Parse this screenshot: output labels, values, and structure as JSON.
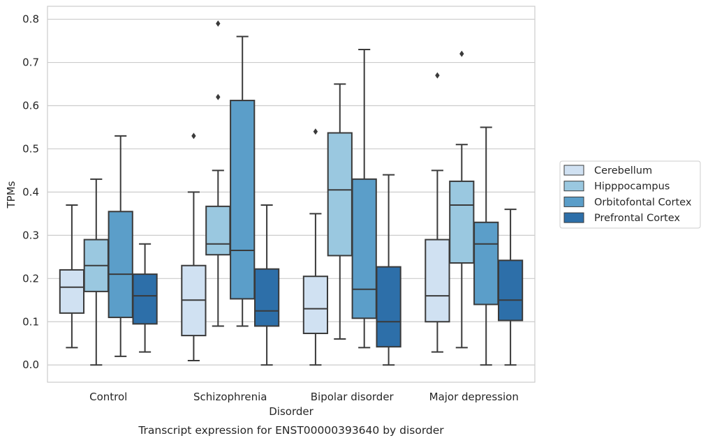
{
  "chart_data": {
    "type": "boxplot",
    "title": "Transcript expression for ENST00000393640 by disorder",
    "xlabel": "Disorder",
    "ylabel": "TPMs",
    "ylim": [
      -0.04,
      0.83
    ],
    "yticks": [
      "0.0",
      "0.1",
      "0.2",
      "0.3",
      "0.4",
      "0.5",
      "0.6",
      "0.7",
      "0.8"
    ],
    "grid": true,
    "legend_position": "right",
    "categories": [
      "Control",
      "Schizophrenia",
      "Bipolar disorder",
      "Major depression"
    ],
    "series": [
      {
        "name": "Cerebellum",
        "color": "#d0e1f2",
        "boxes": [
          {
            "whislo": 0.04,
            "q1": 0.12,
            "med": 0.18,
            "q3": 0.22,
            "whishi": 0.37,
            "fliers": []
          },
          {
            "whislo": 0.01,
            "q1": 0.068,
            "med": 0.15,
            "q3": 0.23,
            "whishi": 0.4,
            "fliers": [
              0.53
            ]
          },
          {
            "whislo": 0.0,
            "q1": 0.073,
            "med": 0.13,
            "q3": 0.205,
            "whishi": 0.35,
            "fliers": [
              0.54
            ]
          },
          {
            "whislo": 0.03,
            "q1": 0.1,
            "med": 0.16,
            "q3": 0.29,
            "whishi": 0.45,
            "fliers": [
              0.67
            ]
          }
        ]
      },
      {
        "name": "Hipppocampus",
        "color": "#9ac8e0",
        "boxes": [
          {
            "whislo": 0.0,
            "q1": 0.17,
            "med": 0.23,
            "q3": 0.29,
            "whishi": 0.43,
            "fliers": []
          },
          {
            "whislo": 0.09,
            "q1": 0.255,
            "med": 0.28,
            "q3": 0.367,
            "whishi": 0.45,
            "fliers": [
              0.62,
              0.79
            ]
          },
          {
            "whislo": 0.06,
            "q1": 0.253,
            "med": 0.405,
            "q3": 0.537,
            "whishi": 0.65,
            "fliers": []
          },
          {
            "whislo": 0.04,
            "q1": 0.236,
            "med": 0.37,
            "q3": 0.425,
            "whishi": 0.51,
            "fliers": [
              0.72
            ]
          }
        ]
      },
      {
        "name": "Orbitofontal Cortex",
        "color": "#5b9ec9",
        "boxes": [
          {
            "whislo": 0.02,
            "q1": 0.11,
            "med": 0.21,
            "q3": 0.355,
            "whishi": 0.53,
            "fliers": []
          },
          {
            "whislo": 0.09,
            "q1": 0.153,
            "med": 0.265,
            "q3": 0.612,
            "whishi": 0.76,
            "fliers": []
          },
          {
            "whislo": 0.04,
            "q1": 0.108,
            "med": 0.175,
            "q3": 0.43,
            "whishi": 0.73,
            "fliers": []
          },
          {
            "whislo": 0.0,
            "q1": 0.14,
            "med": 0.28,
            "q3": 0.33,
            "whishi": 0.55,
            "fliers": []
          }
        ]
      },
      {
        "name": "Prefrontal Cortex",
        "color": "#2d6fa9",
        "boxes": [
          {
            "whislo": 0.03,
            "q1": 0.095,
            "med": 0.16,
            "q3": 0.21,
            "whishi": 0.28,
            "fliers": []
          },
          {
            "whislo": 0.0,
            "q1": 0.09,
            "med": 0.125,
            "q3": 0.222,
            "whishi": 0.37,
            "fliers": []
          },
          {
            "whislo": 0.0,
            "q1": 0.042,
            "med": 0.1,
            "q3": 0.227,
            "whishi": 0.44,
            "fliers": []
          },
          {
            "whislo": 0.0,
            "q1": 0.103,
            "med": 0.15,
            "q3": 0.242,
            "whishi": 0.36,
            "fliers": []
          }
        ]
      }
    ]
  }
}
